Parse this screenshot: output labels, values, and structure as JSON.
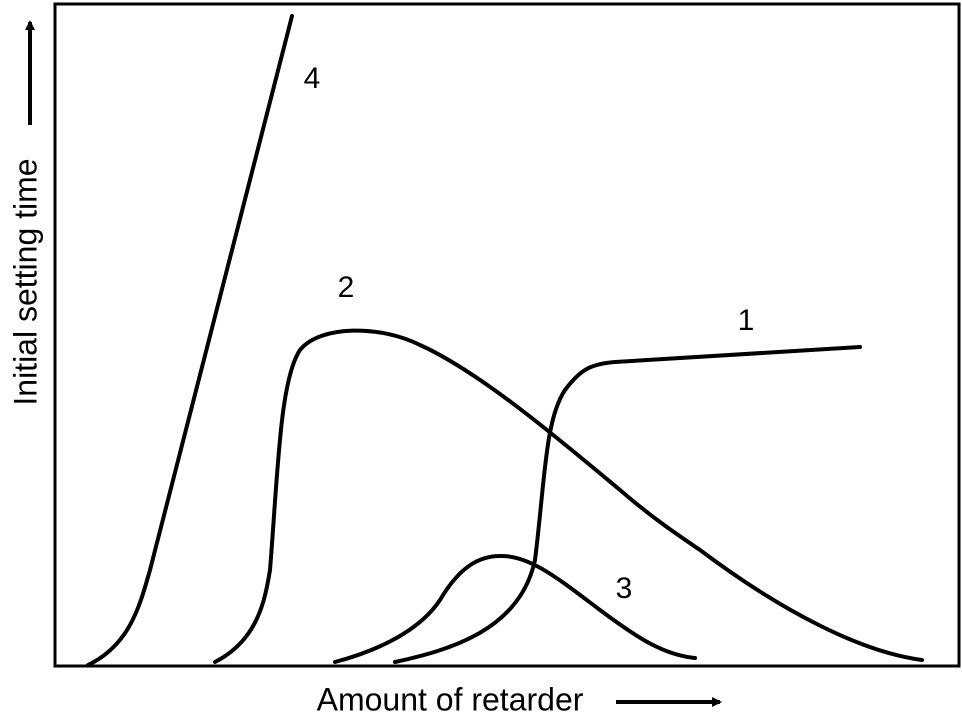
{
  "diagram": {
    "x_axis_label": "Amount of retarder",
    "y_axis_label": "Initial setting time",
    "curves": [
      {
        "label": "1"
      },
      {
        "label": "2"
      },
      {
        "label": "3"
      },
      {
        "label": "4"
      }
    ]
  }
}
